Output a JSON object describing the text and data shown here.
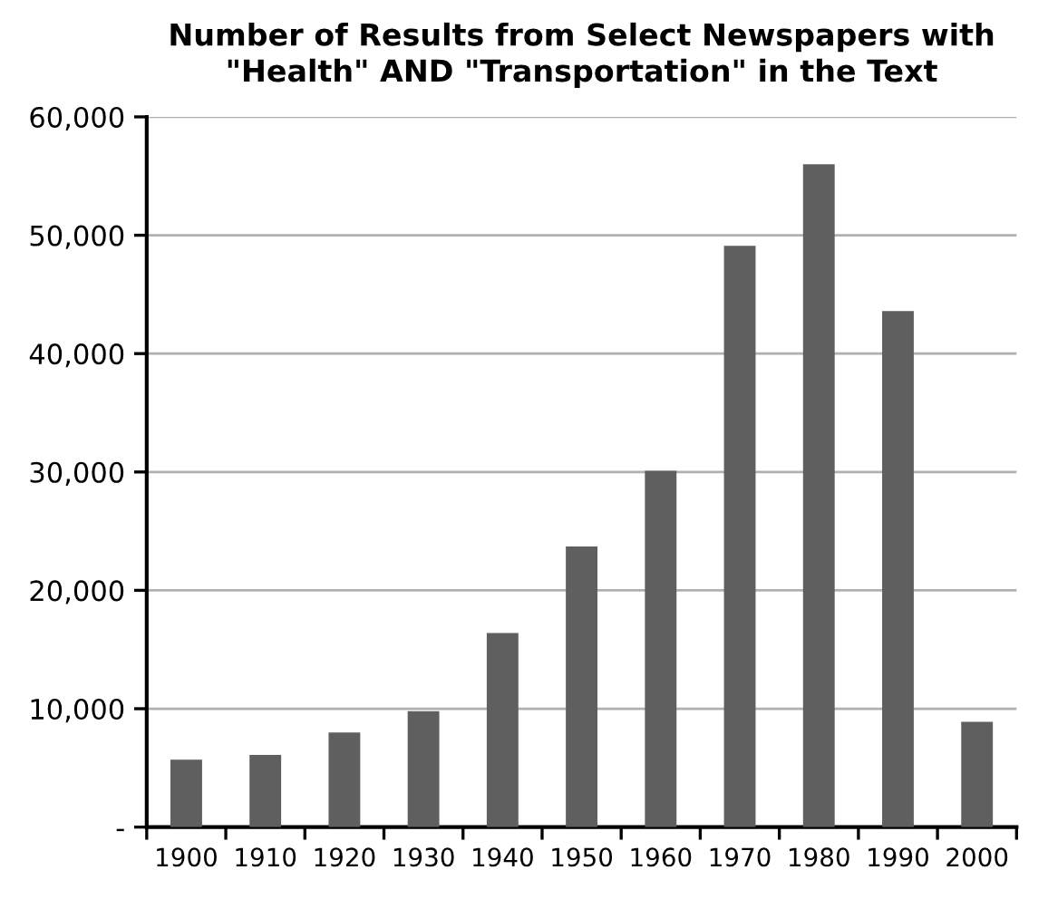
{
  "chart_data": {
    "type": "bar",
    "title": "Number of Results from Select Newspapers with\n\"Health\" AND \"Transportation\" in the Text",
    "categories": [
      "1900",
      "1910",
      "1920",
      "1930",
      "1940",
      "1950",
      "1960",
      "1970",
      "1980",
      "1990",
      "2000"
    ],
    "values": [
      5700,
      6100,
      8000,
      9800,
      16400,
      23700,
      30100,
      49100,
      56000,
      43600,
      8900
    ],
    "color": "#5f5f5f",
    "ylim": [
      0,
      60000
    ],
    "yticks": [
      {
        "value": 0,
        "label": "-"
      },
      {
        "value": 10000,
        "label": "10,000"
      },
      {
        "value": 20000,
        "label": "20,000"
      },
      {
        "value": 30000,
        "label": "30,000"
      },
      {
        "value": 40000,
        "label": "40,000"
      },
      {
        "value": 50000,
        "label": "50,000"
      },
      {
        "value": 60000,
        "label": "60,000"
      }
    ],
    "grid": "y",
    "legend": false
  }
}
